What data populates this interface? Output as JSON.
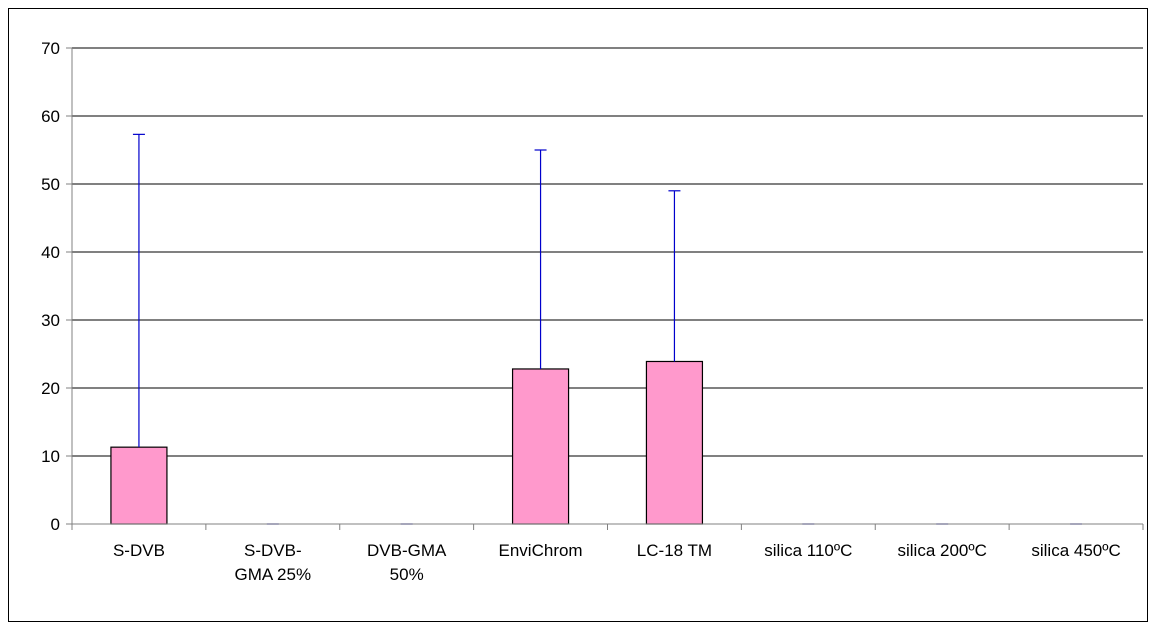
{
  "chart_data": {
    "type": "bar",
    "categories": [
      [
        "S-DVB"
      ],
      [
        "S-DVB-",
        "GMA 25%"
      ],
      [
        "DVB-GMA",
        "50%"
      ],
      [
        "EnviChrom"
      ],
      [
        "LC-18 TM"
      ],
      [
        "silica 110ºC"
      ],
      [
        "silica 200ºC"
      ],
      [
        "silica 450ºC"
      ]
    ],
    "series": [
      {
        "values": [
          11.3,
          0,
          0,
          22.8,
          23.9,
          0,
          0,
          0
        ],
        "error_upper": [
          57.3,
          0,
          0,
          55.0,
          49.0,
          0,
          0,
          0
        ]
      }
    ],
    "ylim": [
      0,
      70
    ],
    "yticks": [
      "0",
      "10",
      "20",
      "30",
      "40",
      "50",
      "60",
      "70"
    ],
    "grid": true,
    "legend": "none",
    "colors": {
      "bar": "#ff99cc",
      "bar_edge": "#000000",
      "error_bar": "#0000cc",
      "grid": "#000000",
      "axis": "#808080"
    }
  }
}
